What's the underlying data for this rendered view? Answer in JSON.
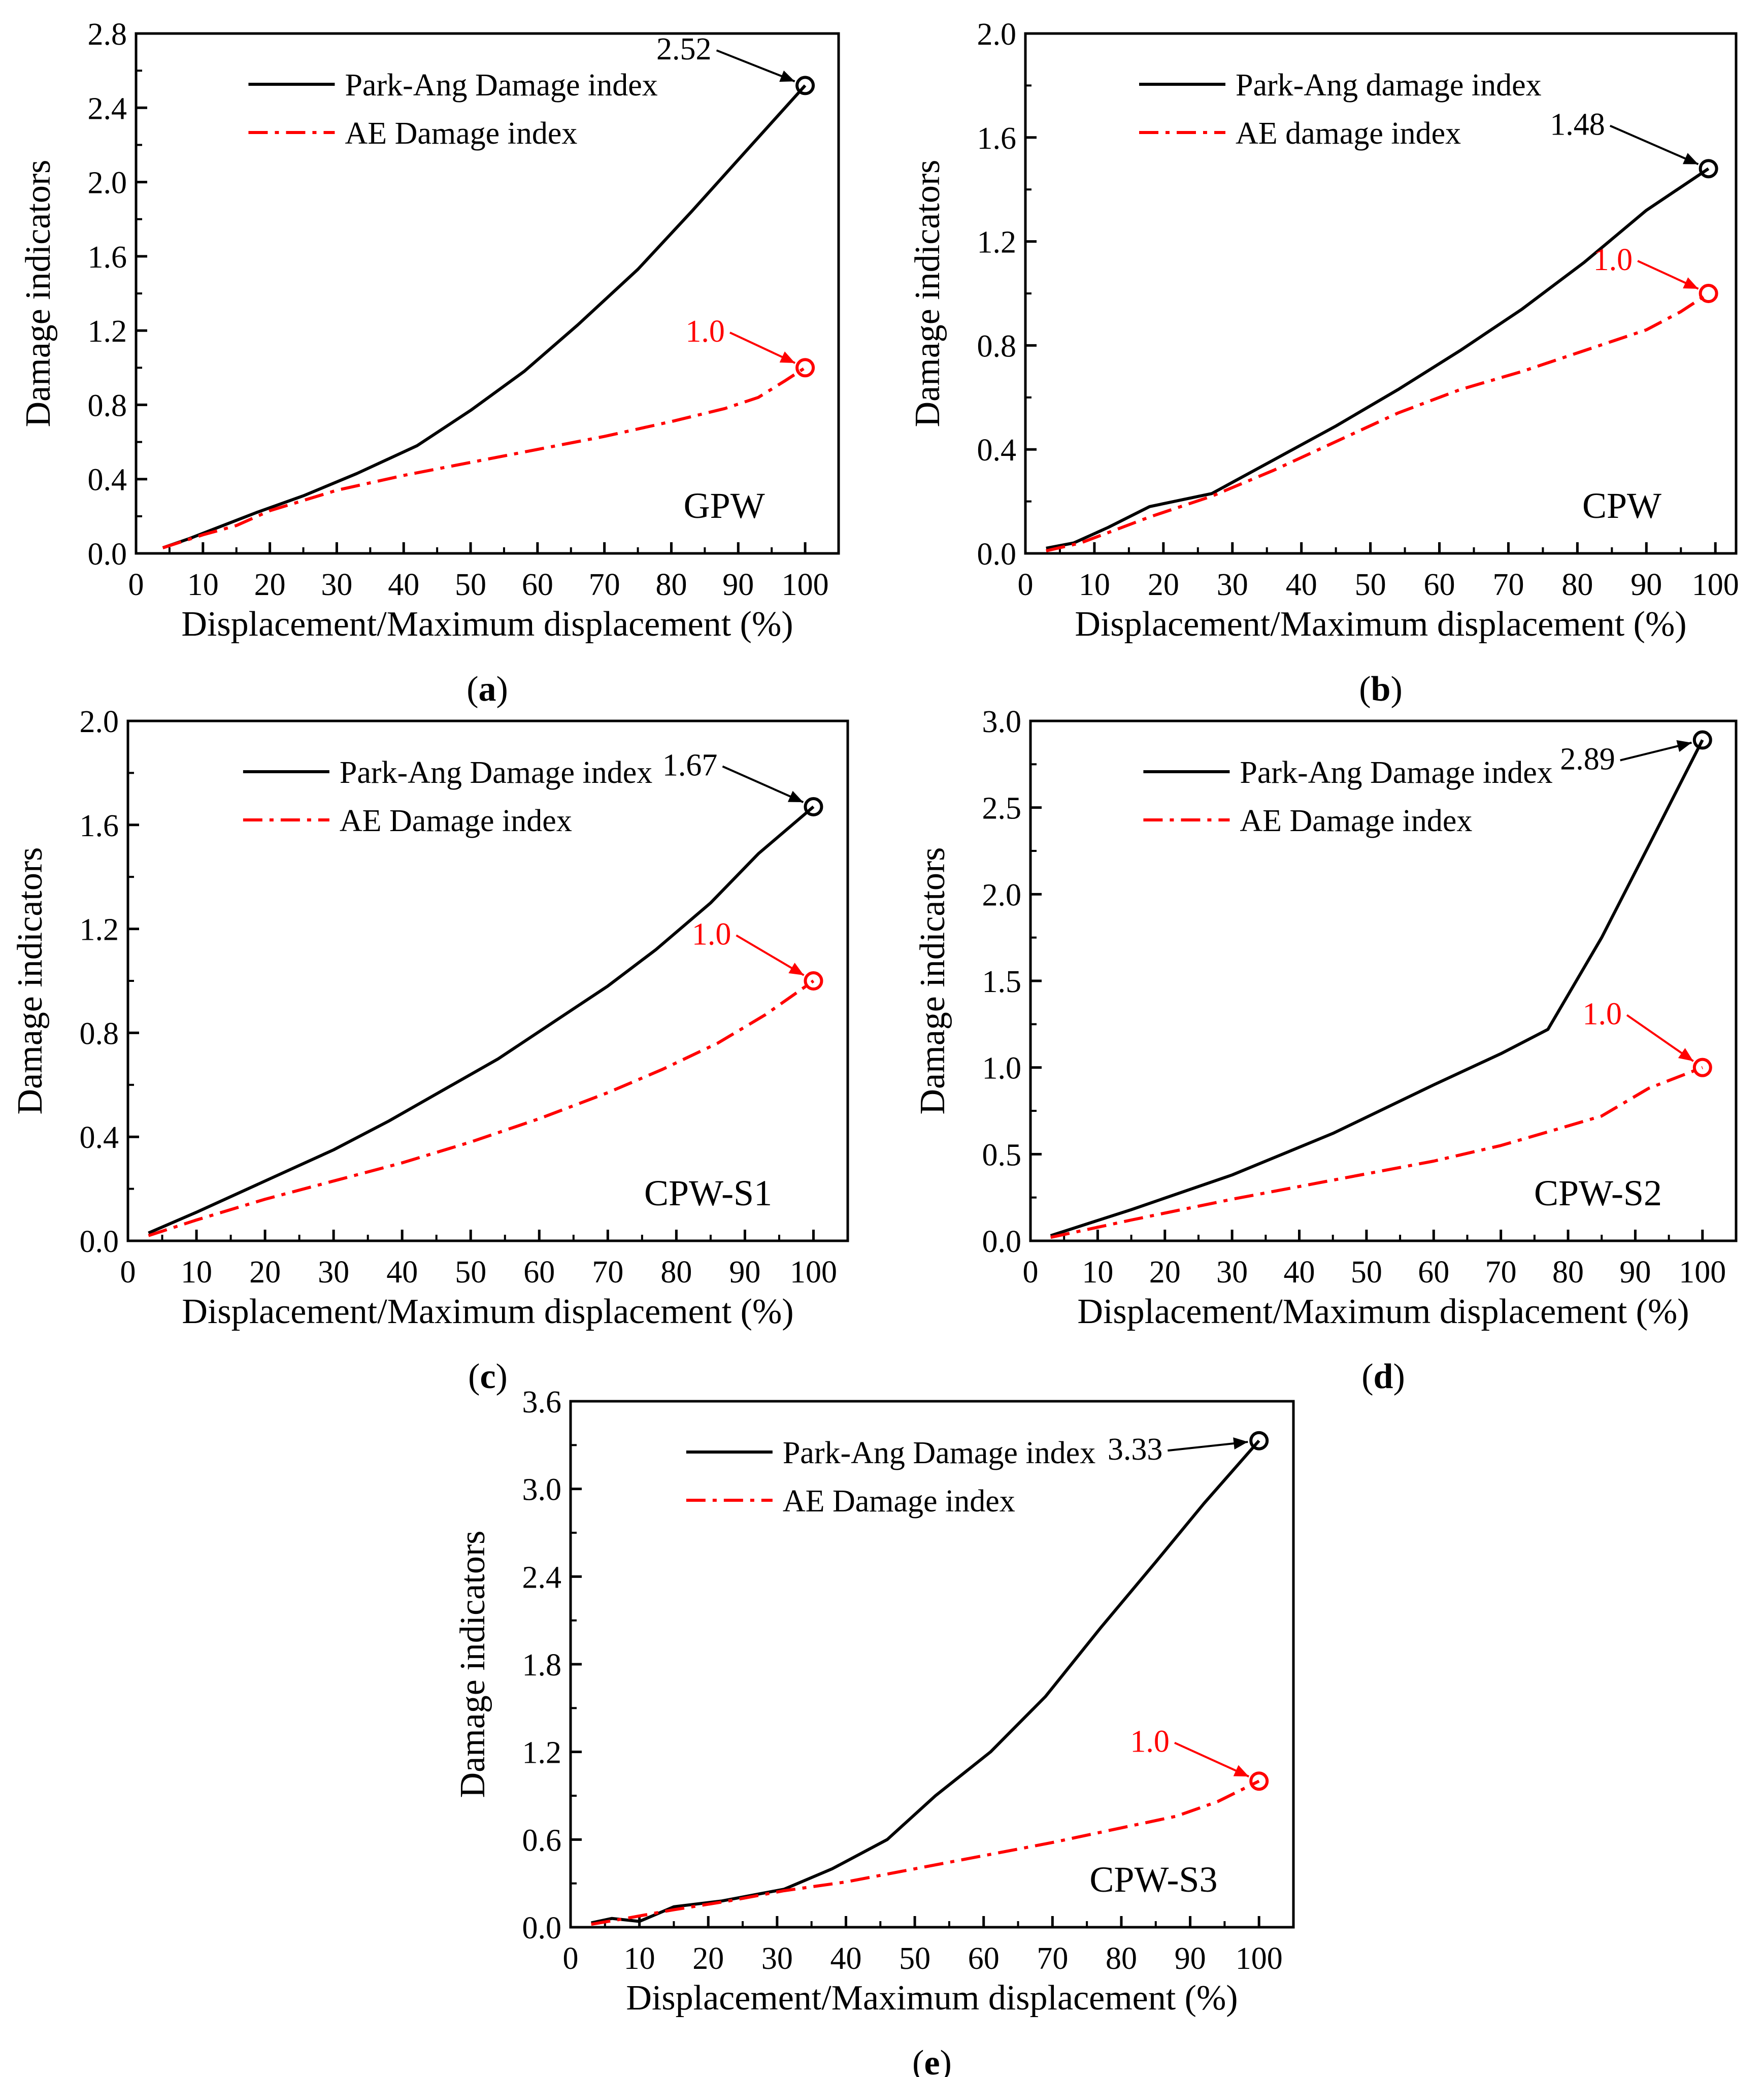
{
  "chart_data": [
    {
      "id": "a",
      "type": "line",
      "caption": "(a)",
      "panel_label": "GPW",
      "xlabel": "Displacement/Maximum displacement (%)",
      "ylabel": "Damage indicators",
      "xlim": [
        0,
        105
      ],
      "ylim": [
        0,
        2.8
      ],
      "xticks": [
        0,
        10,
        20,
        30,
        40,
        50,
        60,
        70,
        80,
        90,
        100
      ],
      "yticks": [
        0.0,
        0.4,
        0.8,
        1.2,
        1.6,
        2.0,
        2.4,
        2.8
      ],
      "ytick_decimals": 1,
      "legend": "top-left",
      "series": [
        {
          "name": "Park-Ang Damage index",
          "style": "solid",
          "color": "#000000",
          "x": [
            4,
            8,
            13,
            18,
            25,
            33,
            42,
            50,
            58,
            66,
            75,
            83,
            92,
            100
          ],
          "y": [
            0.03,
            0.08,
            0.15,
            0.22,
            0.31,
            0.43,
            0.58,
            0.77,
            0.98,
            1.23,
            1.53,
            1.84,
            2.2,
            2.52
          ]
        },
        {
          "name": "AE Damage index",
          "style": "dashdot",
          "color": "#ff0000",
          "x": [
            4,
            10,
            15,
            20,
            30,
            40,
            50,
            60,
            70,
            80,
            88,
            93,
            97,
            100
          ],
          "y": [
            0.03,
            0.1,
            0.15,
            0.23,
            0.34,
            0.42,
            0.49,
            0.56,
            0.63,
            0.71,
            0.78,
            0.84,
            0.93,
            1.0
          ]
        }
      ],
      "annotations": [
        {
          "text": "2.52",
          "color": "#000000",
          "x": 100,
          "y": 2.52,
          "label_x": 86,
          "label_y": 2.66
        },
        {
          "text": "1.0",
          "color": "#ff0000",
          "x": 100,
          "y": 1.0,
          "label_x": 88,
          "label_y": 1.14
        }
      ]
    },
    {
      "id": "b",
      "type": "line",
      "caption": "(b)",
      "panel_label": "CPW",
      "xlabel": "Displacement/Maximum displacement (%)",
      "ylabel": "Damage indicators",
      "xlim": [
        0,
        103
      ],
      "ylim": [
        0,
        2.0
      ],
      "xticks": [
        0,
        10,
        20,
        30,
        40,
        50,
        60,
        70,
        80,
        90,
        100
      ],
      "yticks": [
        0.0,
        0.4,
        0.8,
        1.2,
        1.6,
        2.0
      ],
      "ytick_decimals": 1,
      "legend": "top-left",
      "series": [
        {
          "name": "Park-Ang damage index",
          "style": "solid",
          "color": "#000000",
          "x": [
            3,
            7,
            12,
            18,
            27,
            36,
            45,
            54,
            63,
            72,
            81,
            90,
            99
          ],
          "y": [
            0.02,
            0.04,
            0.1,
            0.18,
            0.23,
            0.36,
            0.49,
            0.63,
            0.78,
            0.94,
            1.12,
            1.32,
            1.48
          ]
        },
        {
          "name": "AE damage index",
          "style": "dashdot",
          "color": "#ff0000",
          "x": [
            3,
            8,
            13,
            18,
            27,
            36,
            45,
            54,
            63,
            72,
            81,
            90,
            95,
            99
          ],
          "y": [
            0.01,
            0.04,
            0.09,
            0.14,
            0.22,
            0.32,
            0.43,
            0.54,
            0.63,
            0.7,
            0.78,
            0.86,
            0.93,
            1.0
          ]
        }
      ],
      "annotations": [
        {
          "text": "1.48",
          "color": "#000000",
          "x": 99,
          "y": 1.48,
          "label_x": 84,
          "label_y": 1.61
        },
        {
          "text": "1.0",
          "color": "#ff0000",
          "x": 99,
          "y": 1.0,
          "label_x": 88,
          "label_y": 1.09
        }
      ]
    },
    {
      "id": "c",
      "type": "line",
      "caption": "(c)",
      "panel_label": "CPW-S1",
      "xlabel": "Displacement/Maximum displacement (%)",
      "ylabel": "Damage indicators",
      "xlim": [
        0,
        105
      ],
      "ylim": [
        0,
        2.0
      ],
      "xticks": [
        0,
        10,
        20,
        30,
        40,
        50,
        60,
        70,
        80,
        90,
        100
      ],
      "yticks": [
        0.0,
        0.4,
        0.8,
        1.2,
        1.6,
        2.0
      ],
      "ytick_decimals": 1,
      "legend": "top-left",
      "series": [
        {
          "name": "Park-Ang Damage index",
          "style": "solid",
          "color": "#000000",
          "x": [
            3,
            10,
            20,
            30,
            38,
            46,
            54,
            62,
            70,
            77,
            85,
            92,
            100
          ],
          "y": [
            0.03,
            0.11,
            0.23,
            0.35,
            0.46,
            0.58,
            0.7,
            0.84,
            0.98,
            1.12,
            1.3,
            1.49,
            1.67
          ]
        },
        {
          "name": "AE Damage index",
          "style": "dashdot",
          "color": "#ff0000",
          "x": [
            3,
            10,
            20,
            30,
            40,
            50,
            60,
            70,
            78,
            86,
            93,
            100
          ],
          "y": [
            0.02,
            0.08,
            0.16,
            0.23,
            0.3,
            0.38,
            0.47,
            0.57,
            0.66,
            0.76,
            0.87,
            1.0
          ]
        }
      ],
      "annotations": [
        {
          "text": "1.67",
          "color": "#000000",
          "x": 100,
          "y": 1.67,
          "label_x": 86,
          "label_y": 1.79
        },
        {
          "text": "1.0",
          "color": "#ff0000",
          "x": 100,
          "y": 1.0,
          "label_x": 88,
          "label_y": 1.14
        }
      ]
    },
    {
      "id": "d",
      "type": "line",
      "caption": "(d)",
      "panel_label": "CPW-S2",
      "xlabel": "Displacement/Maximum displacement (%)",
      "ylabel": "Damage indicators",
      "xlim": [
        0,
        105
      ],
      "ylim": [
        0,
        3.0
      ],
      "xticks": [
        0,
        10,
        20,
        30,
        40,
        50,
        60,
        70,
        80,
        90,
        100
      ],
      "yticks": [
        0.0,
        0.5,
        1.0,
        1.5,
        2.0,
        2.5,
        3.0
      ],
      "ytick_decimals": 1,
      "legend": "top-left",
      "series": [
        {
          "name": "Park-Ang Damage index",
          "style": "solid",
          "color": "#000000",
          "x": [
            3,
            15,
            30,
            45,
            60,
            70,
            77,
            85,
            92,
            100
          ],
          "y": [
            0.03,
            0.18,
            0.38,
            0.62,
            0.9,
            1.08,
            1.22,
            1.75,
            2.28,
            2.89
          ]
        },
        {
          "name": "AE Damage index",
          "style": "dashdot",
          "color": "#ff0000",
          "x": [
            3,
            15,
            30,
            45,
            60,
            70,
            78,
            85,
            92,
            100
          ],
          "y": [
            0.02,
            0.12,
            0.24,
            0.35,
            0.46,
            0.55,
            0.64,
            0.72,
            0.88,
            1.0
          ]
        }
      ],
      "annotations": [
        {
          "text": "2.89",
          "color": "#000000",
          "x": 100,
          "y": 2.89,
          "label_x": 87,
          "label_y": 2.72
        },
        {
          "text": "1.0",
          "color": "#ff0000",
          "x": 100,
          "y": 1.0,
          "label_x": 88,
          "label_y": 1.25
        }
      ]
    },
    {
      "id": "e",
      "type": "line",
      "caption": "(e)",
      "panel_label": "CPW-S3",
      "xlabel": "Displacement/Maximum displacement (%)",
      "ylabel": "Damage indicators",
      "xlim": [
        0,
        105
      ],
      "ylim": [
        0,
        3.6
      ],
      "xticks": [
        0,
        10,
        20,
        30,
        40,
        50,
        60,
        70,
        80,
        90,
        100
      ],
      "yticks": [
        0.0,
        0.6,
        1.2,
        1.8,
        2.4,
        3.0,
        3.6
      ],
      "ytick_decimals": 1,
      "legend": "top-left",
      "series": [
        {
          "name": "Park-Ang Damage index",
          "style": "solid",
          "color": "#000000",
          "x": [
            3,
            6,
            10,
            15,
            22,
            31,
            38,
            46,
            53,
            61,
            69,
            77,
            85,
            92,
            100
          ],
          "y": [
            0.03,
            0.06,
            0.04,
            0.14,
            0.18,
            0.26,
            0.4,
            0.6,
            0.9,
            1.2,
            1.58,
            2.05,
            2.5,
            2.9,
            3.33
          ]
        },
        {
          "name": "AE Damage index",
          "style": "dashdot",
          "color": "#ff0000",
          "x": [
            3,
            8,
            15,
            23,
            31,
            40,
            50,
            60,
            70,
            80,
            88,
            94,
            100
          ],
          "y": [
            0.02,
            0.06,
            0.12,
            0.18,
            0.25,
            0.31,
            0.4,
            0.49,
            0.58,
            0.68,
            0.76,
            0.86,
            1.0
          ]
        }
      ],
      "annotations": [
        {
          "text": "3.33",
          "color": "#000000",
          "x": 100,
          "y": 3.33,
          "label_x": 86,
          "label_y": 3.2
        },
        {
          "text": "1.0",
          "color": "#ff0000",
          "x": 100,
          "y": 1.0,
          "label_x": 87,
          "label_y": 1.2
        }
      ]
    }
  ]
}
